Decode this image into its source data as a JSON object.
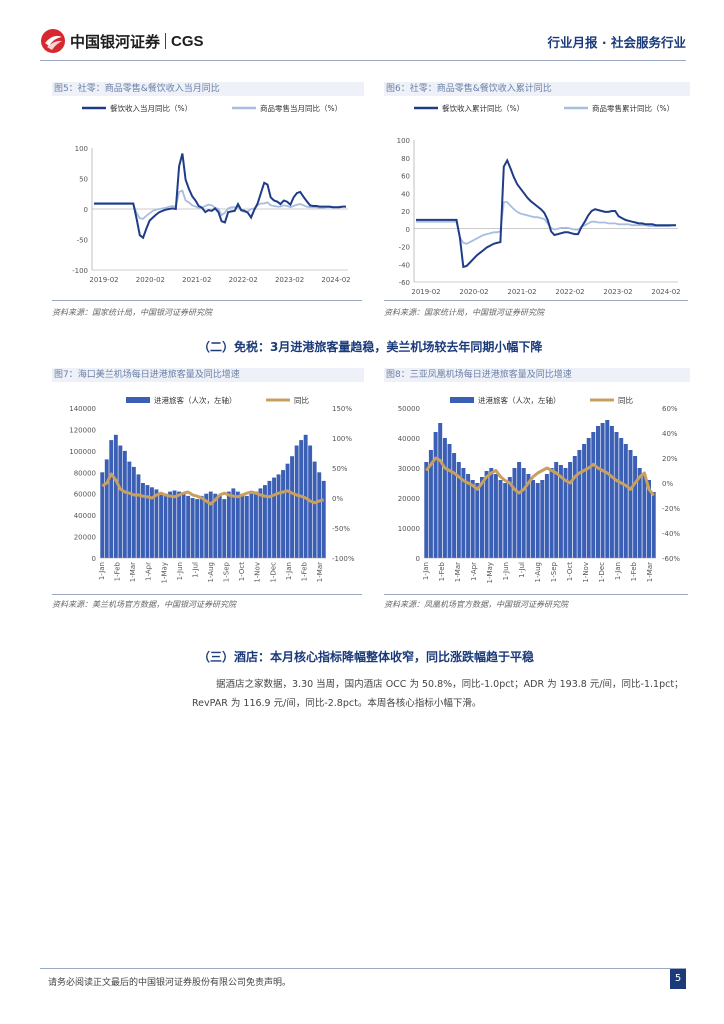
{
  "header": {
    "logo_cn": "中国银河证券",
    "logo_en": "CGS",
    "right": "行业月报 · 社会服务行业"
  },
  "sections": {
    "s2": "（二）免税：3月进港旅客量趋稳，美兰机场较去年同期小幅下降",
    "s3": "（三）酒店：本月核心指标降幅整体收窄，同比涨跌幅趋于平稳",
    "s3_text": "据酒店之家数据，3.30 当周，国内酒店 OCC 为 50.8%，同比-1.0pct；ADR 为 193.8 元/间，同比-1.1pct；RevPAR 为 116.9 元/间，同比-2.8pct。本周各核心指标小幅下滑。"
  },
  "footer": {
    "disclaimer": "请务必阅读正文最后的中国银河证券股份有限公司免责声明。",
    "page": "5"
  },
  "colors": {
    "dark": "#1f3c88",
    "light": "#a9bde0",
    "bar": "#3b5fb5",
    "gold": "#c8a060"
  },
  "chart_data": [
    {
      "id": "fig5",
      "type": "line",
      "title": "图5：社零：商品零售&餐饮收入当月同比",
      "source": "资料来源：国家统计局，中国银河证券研究院",
      "x_ticks": [
        "2019-02",
        "2020-02",
        "2021-02",
        "2022-02",
        "2023-02",
        "2024-02"
      ],
      "y_ticks": [
        "100",
        "50",
        "0",
        "-50",
        "-100"
      ],
      "ylim": [
        -100,
        100
      ],
      "series": [
        {
          "name": "餐饮收入当月同比（%）",
          "values": [
            9,
            9,
            9,
            9,
            9,
            9,
            9,
            9,
            9,
            9,
            9,
            9,
            9,
            -15,
            -43,
            -47,
            -32,
            -19,
            -14,
            -9,
            -5,
            -3,
            -1,
            0,
            1,
            0,
            70,
            91,
            48,
            33,
            21,
            14,
            5,
            2,
            -5,
            -2,
            -3,
            1,
            -5,
            -20,
            -22,
            -5,
            -4,
            -3,
            8,
            -2,
            -3,
            -6,
            -14,
            -1,
            9,
            26,
            43,
            40,
            19,
            14,
            12,
            8,
            14,
            12,
            7,
            19,
            26,
            28,
            20,
            13,
            6,
            5,
            5,
            4,
            4,
            4,
            4,
            3,
            3,
            3,
            4,
            4
          ]
        },
        {
          "name": "商品零售当月同比（%）",
          "values": [
            8,
            8,
            8,
            8,
            8,
            8,
            8,
            8,
            8,
            8,
            8,
            8,
            8,
            -6,
            -15,
            -16,
            -11,
            -7,
            -3,
            -1,
            0,
            1,
            2,
            4,
            5,
            4,
            28,
            30,
            14,
            11,
            6,
            4,
            2,
            2,
            5,
            7,
            6,
            2,
            0,
            -10,
            -6,
            1,
            3,
            3,
            3,
            -3,
            -5,
            -4,
            0,
            1,
            6,
            9,
            9,
            11,
            6,
            5,
            4,
            4,
            6,
            5,
            3,
            5,
            7,
            8,
            6,
            4,
            3,
            3,
            3,
            2,
            2,
            3,
            3,
            3,
            3,
            4,
            4,
            4
          ]
        }
      ]
    },
    {
      "id": "fig6",
      "type": "line",
      "title": "图6：社零：商品零售&餐饮收入累计同比",
      "source": "资料来源：国家统计局，中国银河证券研究院",
      "x_ticks": [
        "2019-02",
        "2020-02",
        "2021-02",
        "2022-02",
        "2023-02",
        "2024-02"
      ],
      "y_ticks": [
        "100",
        "80",
        "60",
        "40",
        "20",
        "0",
        "-20",
        "-40",
        "-60"
      ],
      "ylim": [
        -60,
        100
      ],
      "series": [
        {
          "name": "餐饮收入累计同比（%）",
          "values": [
            10,
            10,
            10,
            10,
            10,
            10,
            10,
            10,
            10,
            10,
            10,
            10,
            10,
            -10,
            -43,
            -42,
            -38,
            -34,
            -30,
            -27,
            -24,
            -21,
            -19,
            -17,
            -16,
            -15,
            70,
            77,
            68,
            58,
            50,
            45,
            40,
            35,
            31,
            28,
            25,
            22,
            18,
            10,
            -3,
            -7,
            -6,
            -5,
            -4,
            -4,
            -5,
            -6,
            -6,
            2,
            8,
            15,
            20,
            22,
            21,
            20,
            19,
            19,
            20,
            20,
            14,
            12,
            10,
            9,
            8,
            7,
            6,
            6,
            5,
            5,
            5,
            4,
            4,
            4,
            4,
            4,
            4,
            4
          ]
        },
        {
          "name": "商品零售累计同比（%）",
          "values": [
            8,
            8,
            8,
            8,
            8,
            8,
            8,
            8,
            8,
            8,
            8,
            8,
            8,
            -10,
            -16,
            -17,
            -15,
            -13,
            -11,
            -9,
            -7,
            -6,
            -5,
            -4,
            -4,
            -3,
            30,
            30,
            26,
            22,
            19,
            17,
            16,
            15,
            14,
            13,
            13,
            12,
            11,
            6,
            1,
            -1,
            0,
            1,
            1,
            1,
            0,
            -1,
            -1,
            2,
            4,
            6,
            8,
            8,
            7,
            7,
            7,
            6,
            6,
            6,
            5,
            5,
            5,
            5,
            4,
            4,
            4,
            4,
            4,
            3,
            3,
            3,
            3,
            3,
            3,
            3,
            4,
            4
          ]
        }
      ]
    },
    {
      "id": "fig7",
      "type": "bar",
      "title": "图7：海口美兰机场每日进港旅客量及同比增速",
      "source": "资料来源：美兰机场官方数据，中国银河证券研究院",
      "legend": [
        "进港旅客（人次，左轴）",
        "同比"
      ],
      "x_ticks": [
        "1-Jan",
        "1-Feb",
        "1-Mar",
        "1-Apr",
        "1-May",
        "1-Jun",
        "1-Jul",
        "1-Aug",
        "1-Sep",
        "1-Oct",
        "1-Nov",
        "1-Dec",
        "1-Jan",
        "1-Feb",
        "1-Mar"
      ],
      "y_left_ticks": [
        "140000",
        "120000",
        "100000",
        "80000",
        "60000",
        "40000",
        "20000",
        "0"
      ],
      "y_right_ticks": [
        "150%",
        "100%",
        "50%",
        "0%",
        "-50%",
        "-100%"
      ],
      "ylim_left": [
        0,
        140000
      ],
      "ylim_right": [
        -100,
        150
      ],
      "bars": [
        80000,
        92000,
        110000,
        115000,
        105000,
        100000,
        90000,
        85000,
        78000,
        70000,
        68000,
        66000,
        64000,
        60000,
        60000,
        62000,
        63000,
        62000,
        60000,
        58000,
        56000,
        55000,
        58000,
        60000,
        62000,
        60000,
        58000,
        55000,
        62000,
        65000,
        62000,
        60000,
        58000,
        60000,
        62000,
        65000,
        68000,
        72000,
        75000,
        78000,
        82000,
        88000,
        95000,
        105000,
        110000,
        115000,
        105000,
        90000,
        80000,
        72000
      ],
      "line": [
        20,
        25,
        40,
        30,
        15,
        10,
        8,
        5,
        5,
        3,
        2,
        0,
        5,
        8,
        5,
        3,
        2,
        5,
        8,
        10,
        5,
        3,
        0,
        -5,
        -10,
        -3,
        5,
        8,
        5,
        3,
        2,
        5,
        8,
        10,
        8,
        5,
        3,
        2,
        5,
        8,
        10,
        12,
        8,
        5,
        3,
        0,
        -5,
        -8,
        -5,
        -3
      ]
    },
    {
      "id": "fig8",
      "type": "bar",
      "title": "图8：三亚凤凰机场每日进港旅客量及同比增速",
      "source": "资料来源：凤凰机场官方数据，中国银河证券研究院",
      "legend": [
        "进港旅客（人次，左轴）",
        "同比"
      ],
      "x_ticks": [
        "1-Jan",
        "1-Feb",
        "1-Mar",
        "1-Apr",
        "1-May",
        "1-Jun",
        "1-Jul",
        "1-Aug",
        "1-Sep",
        "1-Oct",
        "1-Nov",
        "1-Dec",
        "1-Jan",
        "1-Feb",
        "1-Mar"
      ],
      "y_left_ticks": [
        "50000",
        "40000",
        "30000",
        "20000",
        "10000",
        "0"
      ],
      "y_right_ticks": [
        "60%",
        "40%",
        "20%",
        "0%",
        "-20%",
        "-40%",
        "-60%"
      ],
      "ylim_left": [
        0,
        50000
      ],
      "ylim_right": [
        -60,
        60
      ],
      "bars": [
        32000,
        36000,
        42000,
        45000,
        40000,
        38000,
        35000,
        32000,
        30000,
        28000,
        26000,
        25000,
        27000,
        29000,
        30000,
        28000,
        26000,
        25000,
        27000,
        30000,
        32000,
        30000,
        28000,
        26000,
        25000,
        26000,
        28000,
        30000,
        32000,
        31000,
        30000,
        32000,
        34000,
        36000,
        38000,
        40000,
        42000,
        44000,
        45000,
        46000,
        44000,
        42000,
        40000,
        38000,
        36000,
        34000,
        30000,
        28000,
        26000,
        22000
      ],
      "line": [
        10,
        15,
        20,
        18,
        12,
        10,
        8,
        5,
        2,
        0,
        -2,
        -5,
        0,
        5,
        8,
        10,
        5,
        2,
        0,
        -5,
        -8,
        -5,
        0,
        5,
        8,
        10,
        12,
        10,
        8,
        5,
        2,
        0,
        5,
        8,
        10,
        12,
        15,
        12,
        10,
        8,
        5,
        2,
        0,
        -2,
        -5,
        0,
        5,
        8,
        -5,
        -10
      ]
    }
  ]
}
